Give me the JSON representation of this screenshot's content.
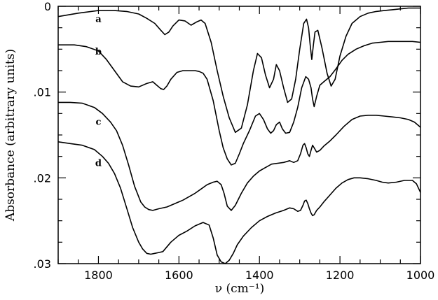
{
  "chart_data": {
    "type": "line",
    "title": "",
    "xlabel": "ν (cm⁻¹)",
    "ylabel": "Absorbance (arbitrary units)",
    "xlim": [
      1900,
      1000
    ],
    "ylim": [
      0,
      0.03
    ],
    "y_inverted": true,
    "grid": false,
    "legend": "none",
    "x_ticks": [
      1800,
      1600,
      1400,
      1200,
      1000
    ],
    "x_tick_labels": [
      "1800",
      "1600",
      "1400",
      "1200",
      "1000"
    ],
    "y_ticks": [
      0,
      0.01,
      0.02,
      0.03
    ],
    "y_tick_labels": [
      "0",
      ".01",
      ".02",
      ".03"
    ],
    "series": [
      {
        "label": "a",
        "label_at": [
          1800,
          0.0015
        ],
        "x": [
          1900,
          1850,
          1800,
          1760,
          1730,
          1700,
          1680,
          1660,
          1645,
          1635,
          1625,
          1615,
          1600,
          1585,
          1570,
          1555,
          1545,
          1535,
          1520,
          1505,
          1490,
          1475,
          1460,
          1445,
          1430,
          1415,
          1405,
          1395,
          1385,
          1375,
          1365,
          1358,
          1350,
          1340,
          1330,
          1320,
          1310,
          1300,
          1290,
          1283,
          1278,
          1274,
          1270,
          1266,
          1262,
          1255,
          1245,
          1232,
          1222,
          1212,
          1200,
          1185,
          1170,
          1150,
          1130,
          1110,
          1090,
          1070,
          1050,
          1030,
          1010,
          1000
        ],
        "y": [
          0.0012,
          0.0008,
          0.0005,
          0.0005,
          0.0006,
          0.0009,
          0.0014,
          0.002,
          0.0028,
          0.0033,
          0.003,
          0.0023,
          0.0016,
          0.0017,
          0.0022,
          0.0018,
          0.0016,
          0.002,
          0.0042,
          0.0075,
          0.0105,
          0.013,
          0.0147,
          0.0142,
          0.0115,
          0.0075,
          0.0055,
          0.006,
          0.008,
          0.0095,
          0.0085,
          0.0068,
          0.0075,
          0.0095,
          0.0112,
          0.0108,
          0.0085,
          0.005,
          0.002,
          0.0015,
          0.0025,
          0.0045,
          0.0062,
          0.0045,
          0.003,
          0.0028,
          0.0048,
          0.0078,
          0.0093,
          0.0085,
          0.0058,
          0.0035,
          0.002,
          0.0012,
          0.0008,
          0.0006,
          0.0005,
          0.0004,
          0.0003,
          0.0002,
          0.0002,
          0.0002
        ]
      },
      {
        "label": "b",
        "label_at": [
          1800,
          0.0053
        ],
        "x": [
          1900,
          1860,
          1830,
          1800,
          1780,
          1760,
          1740,
          1720,
          1700,
          1680,
          1665,
          1655,
          1645,
          1638,
          1630,
          1620,
          1605,
          1590,
          1575,
          1560,
          1550,
          1540,
          1530,
          1515,
          1500,
          1490,
          1480,
          1470,
          1460,
          1450,
          1440,
          1425,
          1410,
          1400,
          1390,
          1380,
          1372,
          1365,
          1358,
          1350,
          1343,
          1335,
          1325,
          1315,
          1305,
          1295,
          1285,
          1278,
          1272,
          1268,
          1264,
          1258,
          1250,
          1240,
          1225,
          1210,
          1195,
          1180,
          1160,
          1140,
          1120,
          1100,
          1080,
          1060,
          1040,
          1020,
          1000
        ],
        "y": [
          0.0045,
          0.0045,
          0.0047,
          0.0052,
          0.0062,
          0.0075,
          0.0088,
          0.0093,
          0.0094,
          0.009,
          0.0088,
          0.0092,
          0.0096,
          0.0097,
          0.0093,
          0.0085,
          0.0077,
          0.0075,
          0.0075,
          0.0075,
          0.0076,
          0.0078,
          0.0085,
          0.011,
          0.0145,
          0.0165,
          0.0178,
          0.0185,
          0.0183,
          0.0172,
          0.016,
          0.0145,
          0.0128,
          0.0125,
          0.0132,
          0.0143,
          0.0148,
          0.0145,
          0.0138,
          0.0135,
          0.0143,
          0.0148,
          0.0147,
          0.0135,
          0.0118,
          0.0095,
          0.0082,
          0.0085,
          0.0095,
          0.0108,
          0.0117,
          0.0105,
          0.0092,
          0.0088,
          0.0082,
          0.0073,
          0.0063,
          0.0056,
          0.005,
          0.0046,
          0.0043,
          0.0042,
          0.0041,
          0.0041,
          0.0041,
          0.0041,
          0.0042
        ]
      },
      {
        "label": "c",
        "label_at": [
          1800,
          0.0135
        ],
        "x": [
          1900,
          1870,
          1840,
          1810,
          1790,
          1770,
          1755,
          1740,
          1725,
          1710,
          1695,
          1685,
          1675,
          1665,
          1650,
          1630,
          1610,
          1590,
          1575,
          1560,
          1545,
          1530,
          1515,
          1505,
          1495,
          1488,
          1480,
          1470,
          1460,
          1445,
          1430,
          1415,
          1400,
          1385,
          1370,
          1355,
          1340,
          1325,
          1315,
          1305,
          1298,
          1292,
          1288,
          1284,
          1280,
          1276,
          1272,
          1268,
          1264,
          1258,
          1250,
          1240,
          1225,
          1210,
          1190,
          1170,
          1150,
          1130,
          1110,
          1090,
          1070,
          1050,
          1030,
          1015,
          1005,
          1000
        ],
        "y": [
          0.0112,
          0.0112,
          0.0113,
          0.0118,
          0.0125,
          0.0135,
          0.0145,
          0.0162,
          0.0185,
          0.021,
          0.0228,
          0.0234,
          0.0237,
          0.0238,
          0.0236,
          0.0234,
          0.023,
          0.0226,
          0.0222,
          0.0218,
          0.0213,
          0.0208,
          0.0205,
          0.0204,
          0.0208,
          0.0218,
          0.0233,
          0.0238,
          0.0232,
          0.0218,
          0.0206,
          0.0198,
          0.0192,
          0.0188,
          0.0184,
          0.0183,
          0.0182,
          0.018,
          0.0182,
          0.018,
          0.0172,
          0.0162,
          0.016,
          0.0165,
          0.0172,
          0.0175,
          0.0168,
          0.0162,
          0.0165,
          0.017,
          0.0168,
          0.0163,
          0.0157,
          0.015,
          0.014,
          0.0132,
          0.0128,
          0.0127,
          0.0127,
          0.0128,
          0.0129,
          0.013,
          0.0132,
          0.0135,
          0.0139,
          0.0141
        ]
      },
      {
        "label": "d",
        "label_at": [
          1800,
          0.0183
        ],
        "x": [
          1900,
          1870,
          1840,
          1810,
          1790,
          1775,
          1760,
          1745,
          1730,
          1715,
          1700,
          1690,
          1680,
          1670,
          1660,
          1650,
          1640,
          1620,
          1600,
          1580,
          1560,
          1540,
          1525,
          1515,
          1505,
          1495,
          1485,
          1475,
          1465,
          1455,
          1440,
          1420,
          1400,
          1380,
          1360,
          1340,
          1325,
          1315,
          1305,
          1298,
          1292,
          1288,
          1284,
          1280,
          1276,
          1272,
          1268,
          1264,
          1258,
          1250,
          1240,
          1225,
          1210,
          1195,
          1180,
          1165,
          1150,
          1130,
          1110,
          1095,
          1080,
          1060,
          1040,
          1020,
          1010,
          1000
        ],
        "y": [
          0.0158,
          0.016,
          0.0162,
          0.0167,
          0.0175,
          0.0183,
          0.0195,
          0.0212,
          0.0235,
          0.0258,
          0.0275,
          0.0283,
          0.0288,
          0.0289,
          0.0288,
          0.0287,
          0.0286,
          0.0275,
          0.0267,
          0.0262,
          0.0256,
          0.0252,
          0.0255,
          0.027,
          0.029,
          0.0298,
          0.03,
          0.0296,
          0.0288,
          0.0278,
          0.0268,
          0.0258,
          0.025,
          0.0245,
          0.0241,
          0.0238,
          0.0235,
          0.0236,
          0.0239,
          0.0238,
          0.0232,
          0.0227,
          0.0226,
          0.023,
          0.0236,
          0.0241,
          0.0244,
          0.0243,
          0.0238,
          0.0234,
          0.0228,
          0.022,
          0.0212,
          0.0206,
          0.0202,
          0.02,
          0.02,
          0.0201,
          0.0203,
          0.0205,
          0.0206,
          0.0205,
          0.0203,
          0.0203,
          0.0207,
          0.0217
        ]
      }
    ]
  }
}
